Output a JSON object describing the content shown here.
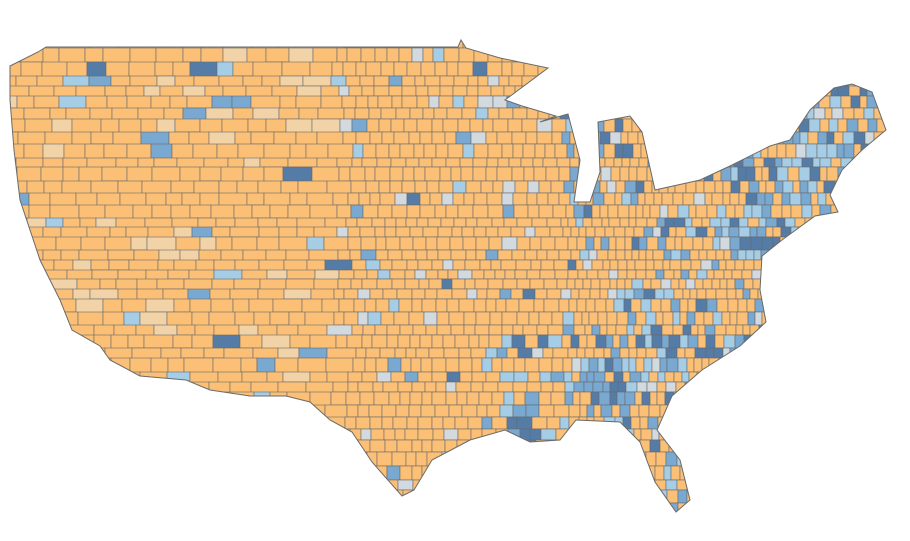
{
  "map": {
    "palette": [
      "#fbbf75",
      "#f2d3a8",
      "#d2dadf",
      "#a6cde6",
      "#79a8d0",
      "#547ca6"
    ],
    "border": "#6a6a6a"
  }
}
